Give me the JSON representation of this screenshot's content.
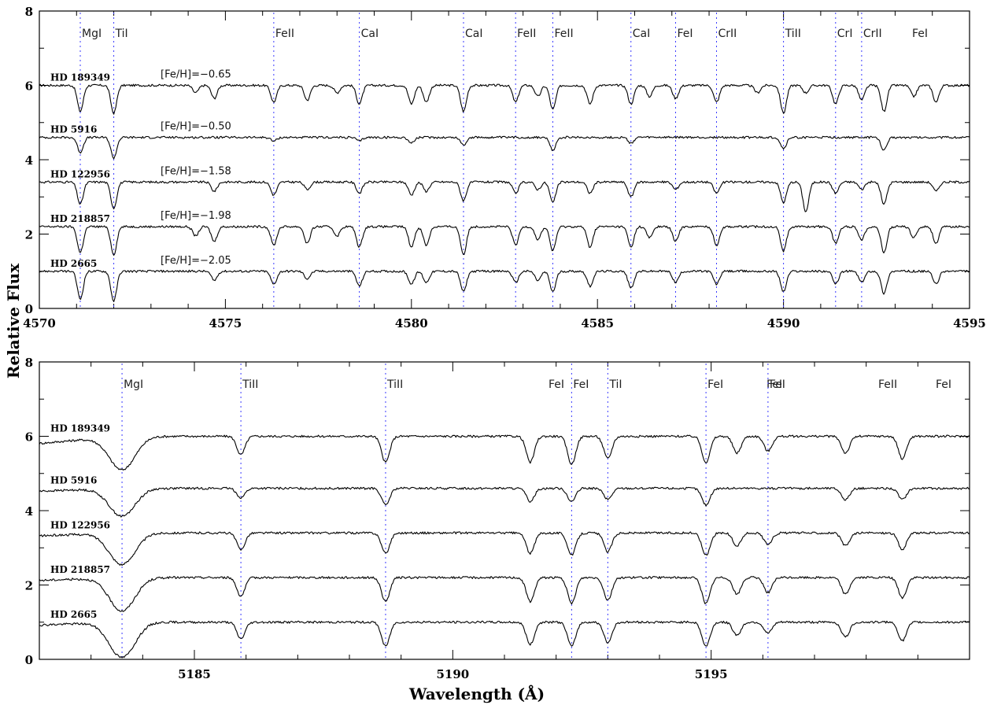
{
  "chart_data": {
    "type": "line",
    "ylabel": "Relative Flux",
    "xlabel": "Wavelength (Å)",
    "panels": [
      {
        "xlim": [
          4570,
          4595
        ],
        "ylim": [
          0,
          8
        ],
        "xticks": [
          4570,
          4575,
          4580,
          4585,
          4590,
          4595
        ],
        "yticks": [
          0,
          2,
          4,
          6,
          8
        ],
        "line_labels": [
          {
            "label": "MgI",
            "x": 4571.1
          },
          {
            "label": "TiI",
            "x": 4572.0
          },
          {
            "label": "FeII",
            "x": 4576.3
          },
          {
            "label": "CaI",
            "x": 4578.6
          },
          {
            "label": "CaI",
            "x": 4581.4
          },
          {
            "label": "FeII",
            "x": 4582.8
          },
          {
            "label": "FeII",
            "x": 4583.8
          },
          {
            "label": "CaI",
            "x": 4585.9
          },
          {
            "label": "FeI",
            "x": 4587.1
          },
          {
            "label": "CrII",
            "x": 4588.2
          },
          {
            "label": "TiII",
            "x": 4590.0
          },
          {
            "label": "CrI",
            "x": 4591.4
          },
          {
            "label": "CrII",
            "x": 4592.1
          },
          {
            "label": "FeI",
            "x": null
          }
        ],
        "series": [
          {
            "name": "HD 189349",
            "feh": "[Fe/H]=−0.65",
            "continuum": 6.0,
            "lines": [
              [
                4571.1,
                0.7
              ],
              [
                4572.0,
                0.75
              ],
              [
                4574.2,
                0.2
              ],
              [
                4574.7,
                0.35
              ],
              [
                4576.3,
                0.45
              ],
              [
                4577.2,
                0.4
              ],
              [
                4578.0,
                0.2
              ],
              [
                4578.6,
                0.5
              ],
              [
                4580.0,
                0.5
              ],
              [
                4580.4,
                0.45
              ],
              [
                4581.4,
                0.7
              ],
              [
                4582.8,
                0.45
              ],
              [
                4583.4,
                0.3
              ],
              [
                4583.8,
                0.65
              ],
              [
                4584.8,
                0.5
              ],
              [
                4585.9,
                0.5
              ],
              [
                4586.4,
                0.3
              ],
              [
                4587.1,
                0.35
              ],
              [
                4588.2,
                0.45
              ],
              [
                4589.3,
                0.2
              ],
              [
                4590.0,
                0.75
              ],
              [
                4590.6,
                0.2
              ],
              [
                4591.4,
                0.5
              ],
              [
                4592.1,
                0.4
              ],
              [
                4592.7,
                0.7
              ],
              [
                4593.5,
                0.3
              ],
              [
                4594.1,
                0.45
              ]
            ]
          },
          {
            "name": "HD 5916",
            "feh": "[Fe/H]=−0.50",
            "continuum": 4.6,
            "lines": [
              [
                4571.1,
                0.4
              ],
              [
                4572.0,
                0.55
              ],
              [
                4576.3,
                0.1
              ],
              [
                4578.6,
                0.1
              ],
              [
                4580.0,
                0.15
              ],
              [
                4581.4,
                0.2
              ],
              [
                4583.8,
                0.35
              ],
              [
                4585.9,
                0.15
              ],
              [
                4590.0,
                0.3
              ],
              [
                4592.7,
                0.35
              ]
            ]
          },
          {
            "name": "HD 122956",
            "feh": "[Fe/H]=−1.58",
            "continuum": 3.4,
            "lines": [
              [
                4571.1,
                0.6
              ],
              [
                4572.0,
                0.7
              ],
              [
                4574.7,
                0.25
              ],
              [
                4576.3,
                0.35
              ],
              [
                4577.2,
                0.2
              ],
              [
                4578.6,
                0.3
              ],
              [
                4580.0,
                0.35
              ],
              [
                4580.4,
                0.25
              ],
              [
                4581.4,
                0.5
              ],
              [
                4582.8,
                0.3
              ],
              [
                4583.4,
                0.2
              ],
              [
                4583.8,
                0.55
              ],
              [
                4584.8,
                0.3
              ],
              [
                4585.9,
                0.4
              ],
              [
                4587.1,
                0.2
              ],
              [
                4588.2,
                0.3
              ],
              [
                4590.0,
                0.55
              ],
              [
                4590.6,
                0.8
              ],
              [
                4591.4,
                0.3
              ],
              [
                4592.1,
                0.2
              ],
              [
                4592.7,
                0.6
              ],
              [
                4594.1,
                0.25
              ]
            ]
          },
          {
            "name": "HD 218857",
            "feh": "[Fe/H]=−1.98",
            "continuum": 2.2,
            "lines": [
              [
                4571.1,
                0.7
              ],
              [
                4572.0,
                0.75
              ],
              [
                4574.2,
                0.25
              ],
              [
                4574.7,
                0.4
              ],
              [
                4576.3,
                0.5
              ],
              [
                4577.2,
                0.45
              ],
              [
                4578.0,
                0.25
              ],
              [
                4578.6,
                0.55
              ],
              [
                4580.0,
                0.55
              ],
              [
                4580.4,
                0.5
              ],
              [
                4581.4,
                0.75
              ],
              [
                4582.8,
                0.5
              ],
              [
                4583.4,
                0.35
              ],
              [
                4583.8,
                0.65
              ],
              [
                4584.8,
                0.55
              ],
              [
                4585.9,
                0.55
              ],
              [
                4586.4,
                0.3
              ],
              [
                4587.1,
                0.4
              ],
              [
                4588.2,
                0.5
              ],
              [
                4590.0,
                0.65
              ],
              [
                4591.4,
                0.45
              ],
              [
                4592.1,
                0.35
              ],
              [
                4592.7,
                0.7
              ],
              [
                4593.5,
                0.3
              ],
              [
                4594.1,
                0.45
              ]
            ]
          },
          {
            "name": "HD 2665",
            "feh": "[Fe/H]=−2.05",
            "continuum": 1.0,
            "lines": [
              [
                4571.1,
                0.75
              ],
              [
                4572.0,
                0.8
              ],
              [
                4574.7,
                0.25
              ],
              [
                4576.3,
                0.35
              ],
              [
                4577.2,
                0.2
              ],
              [
                4578.6,
                0.4
              ],
              [
                4580.0,
                0.35
              ],
              [
                4580.4,
                0.3
              ],
              [
                4581.4,
                0.55
              ],
              [
                4582.8,
                0.3
              ],
              [
                4583.4,
                0.25
              ],
              [
                4583.8,
                0.55
              ],
              [
                4584.8,
                0.4
              ],
              [
                4585.9,
                0.45
              ],
              [
                4587.1,
                0.3
              ],
              [
                4588.2,
                0.35
              ],
              [
                4590.0,
                0.55
              ],
              [
                4591.4,
                0.35
              ],
              [
                4592.1,
                0.3
              ],
              [
                4592.7,
                0.6
              ],
              [
                4594.1,
                0.35
              ]
            ]
          }
        ]
      },
      {
        "xlim": [
          5182,
          5200
        ],
        "ylim": [
          0,
          8
        ],
        "xticks": [
          5185,
          5190,
          5195
        ],
        "yticks": [
          0,
          2,
          4,
          6,
          8
        ],
        "line_labels": [
          {
            "label": "MgI",
            "x": 5183.6
          },
          {
            "label": "TiII",
            "x": 5185.9
          },
          {
            "label": "TiII",
            "x": 5188.7
          },
          {
            "label": "FeI",
            "x": null
          },
          {
            "label": "FeI",
            "x": 5192.3
          },
          {
            "label": "TiI",
            "x": 5193.0
          },
          {
            "label": "FeI",
            "x": 5194.9
          },
          {
            "label": "FeI",
            "x": null
          },
          {
            "label": "FeI",
            "x": 5196.1
          },
          {
            "label": "FeII",
            "x": null
          },
          {
            "label": "FeI",
            "x": null
          }
        ],
        "series": [
          {
            "name": "HD 189349",
            "continuum": 6.0,
            "lines": [
              [
                5183.6,
                0.9
              ],
              [
                5185.9,
                0.5
              ],
              [
                5188.7,
                0.7
              ],
              [
                5191.5,
                0.7
              ],
              [
                5192.3,
                0.75
              ],
              [
                5193.0,
                0.6
              ],
              [
                5194.9,
                0.7
              ],
              [
                5195.5,
                0.45
              ],
              [
                5196.1,
                0.4
              ],
              [
                5197.6,
                0.45
              ],
              [
                5198.7,
                0.6
              ]
            ]
          },
          {
            "name": "HD 5916",
            "continuum": 4.6,
            "lines": [
              [
                5183.6,
                0.75
              ],
              [
                5185.9,
                0.25
              ],
              [
                5188.7,
                0.45
              ],
              [
                5191.5,
                0.35
              ],
              [
                5192.3,
                0.35
              ],
              [
                5193.0,
                0.3
              ],
              [
                5194.9,
                0.45
              ],
              [
                5197.6,
                0.3
              ],
              [
                5198.7,
                0.3
              ]
            ]
          },
          {
            "name": "HD 122956",
            "continuum": 3.4,
            "lines": [
              [
                5183.6,
                0.85
              ],
              [
                5185.9,
                0.45
              ],
              [
                5188.7,
                0.55
              ],
              [
                5191.5,
                0.55
              ],
              [
                5192.3,
                0.6
              ],
              [
                5193.0,
                0.5
              ],
              [
                5194.9,
                0.6
              ],
              [
                5195.5,
                0.35
              ],
              [
                5196.1,
                0.3
              ],
              [
                5197.6,
                0.35
              ],
              [
                5198.7,
                0.45
              ]
            ]
          },
          {
            "name": "HD 218857",
            "continuum": 2.2,
            "lines": [
              [
                5183.6,
                0.9
              ],
              [
                5185.9,
                0.5
              ],
              [
                5188.7,
                0.65
              ],
              [
                5191.5,
                0.65
              ],
              [
                5192.3,
                0.7
              ],
              [
                5193.0,
                0.6
              ],
              [
                5194.9,
                0.7
              ],
              [
                5195.5,
                0.45
              ],
              [
                5196.1,
                0.4
              ],
              [
                5197.6,
                0.45
              ],
              [
                5198.7,
                0.55
              ]
            ]
          },
          {
            "name": "HD 2665",
            "continuum": 1.0,
            "lines": [
              [
                5183.6,
                0.95
              ],
              [
                5185.9,
                0.45
              ],
              [
                5188.7,
                0.65
              ],
              [
                5191.5,
                0.6
              ],
              [
                5192.3,
                0.65
              ],
              [
                5193.0,
                0.55
              ],
              [
                5194.9,
                0.65
              ],
              [
                5195.5,
                0.35
              ],
              [
                5196.1,
                0.3
              ],
              [
                5197.6,
                0.4
              ],
              [
                5198.7,
                0.5
              ]
            ]
          }
        ]
      }
    ]
  }
}
